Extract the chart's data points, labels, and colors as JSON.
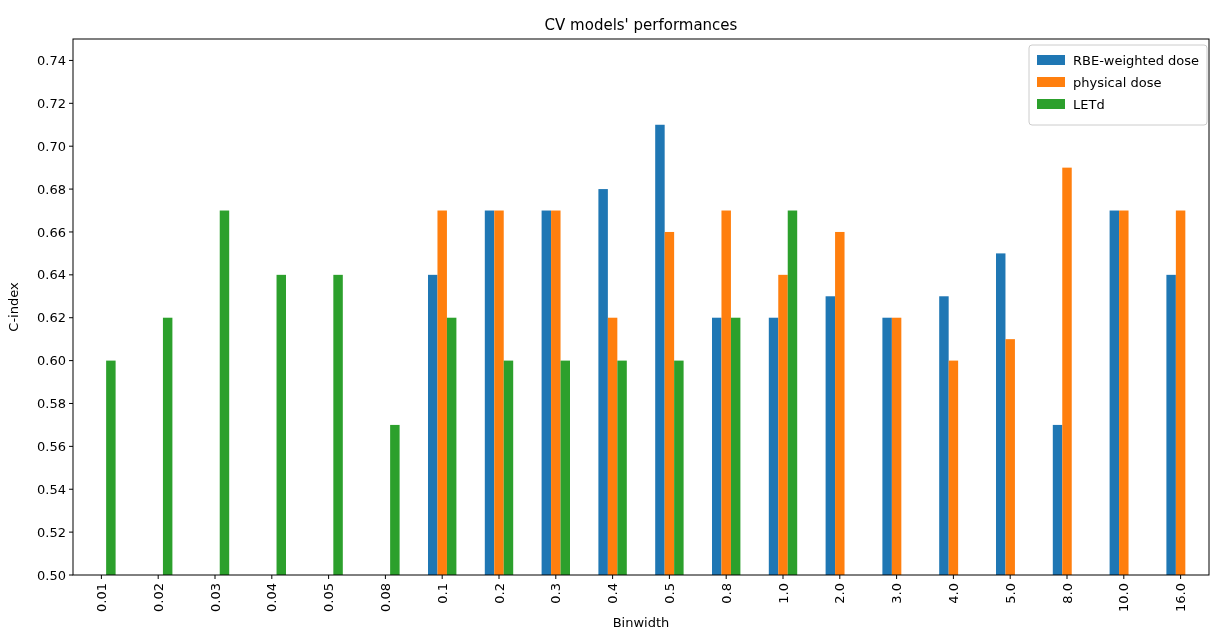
{
  "chart_data": {
    "type": "bar",
    "title": "CV models' performances",
    "xlabel": "Binwidth",
    "ylabel": "C-index",
    "categories": [
      "0.01",
      "0.02",
      "0.03",
      "0.04",
      "0.05",
      "0.08",
      "0.1",
      "0.2",
      "0.3",
      "0.4",
      "0.5",
      "0.8",
      "1.0",
      "2.0",
      "3.0",
      "4.0",
      "5.0",
      "8.0",
      "10.0",
      "16.0"
    ],
    "series": [
      {
        "name": "RBE-weighted dose",
        "color": "#1f77b4",
        "values": [
          null,
          null,
          null,
          null,
          null,
          null,
          0.64,
          0.67,
          0.67,
          0.68,
          0.71,
          0.62,
          0.62,
          0.63,
          0.62,
          0.63,
          0.65,
          0.57,
          0.67,
          0.64
        ]
      },
      {
        "name": "physical dose",
        "color": "#ff7f0e",
        "values": [
          null,
          null,
          null,
          null,
          null,
          null,
          0.67,
          0.67,
          0.67,
          0.62,
          0.66,
          0.67,
          0.64,
          0.66,
          0.62,
          0.6,
          0.61,
          0.69,
          0.67,
          0.67
        ]
      },
      {
        "name": "LETd",
        "color": "#2ca02c",
        "values": [
          0.6,
          0.62,
          0.67,
          0.64,
          0.64,
          0.57,
          0.62,
          0.6,
          0.6,
          0.6,
          0.6,
          0.62,
          0.67,
          null,
          null,
          null,
          null,
          null,
          null,
          null
        ]
      }
    ],
    "ylim": [
      0.5,
      0.75
    ],
    "yticks": [
      {
        "value": 0.5,
        "label": "0.50"
      },
      {
        "value": 0.52,
        "label": "0.52"
      },
      {
        "value": 0.54,
        "label": "0.54"
      },
      {
        "value": 0.56,
        "label": "0.56"
      },
      {
        "value": 0.58,
        "label": "0.58"
      },
      {
        "value": 0.6,
        "label": "0.60"
      },
      {
        "value": 0.62,
        "label": "0.62"
      },
      {
        "value": 0.64,
        "label": "0.64"
      },
      {
        "value": 0.66,
        "label": "0.66"
      },
      {
        "value": 0.68,
        "label": "0.68"
      },
      {
        "value": 0.7,
        "label": "0.70"
      },
      {
        "value": 0.72,
        "label": "0.72"
      },
      {
        "value": 0.74,
        "label": "0.74"
      }
    ],
    "legend": "top right"
  }
}
